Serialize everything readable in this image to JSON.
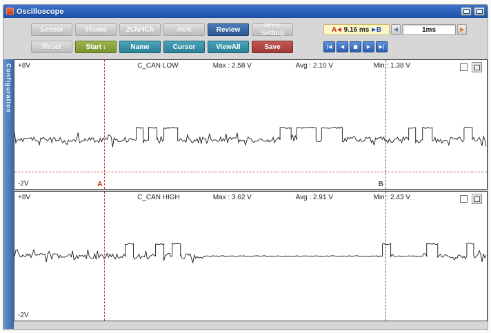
{
  "titlebar": {
    "title": "Oscilloscope"
  },
  "toolbar": {
    "row1": {
      "sensor": "Sensor",
      "theme": "Theme",
      "ch_mode": "2Ch/4Ch",
      "aux": "AUX",
      "review": "Review",
      "user_setting": "User Setting"
    },
    "row2": {
      "reset": "Reset",
      "start": "Start",
      "start_spinner": "↕",
      "name": "Name",
      "cursor": "Cursor",
      "viewall": "ViewAll",
      "save": "Save"
    },
    "time": {
      "a_label": "A",
      "left_mark": "◀",
      "value": "9.16 ms",
      "right_mark": "▶",
      "b_label": "B",
      "dec_glyph": "◀",
      "timebase": "1ms",
      "inc_glyph": "▶"
    },
    "playback": {
      "skip_back": "|◀",
      "back": "◀",
      "stop": "■",
      "play": "▶",
      "skip_forward": "▶|"
    }
  },
  "sidebar": {
    "label": "Configuration"
  },
  "channels": [
    {
      "name": "C_CAN LOW",
      "top_voltage": "+8V",
      "bottom_voltage": "-2V",
      "max": "Max : 2.58 V",
      "avg": "Avg : 2.10 V",
      "min": "Min : 1.38 V",
      "cursor_a_label": "A",
      "cursor_b_label": "B",
      "cursor_a_x": 0.19,
      "cursor_b_x": 0.785,
      "ref_line_y": 0.865,
      "wave": {
        "seed": 7,
        "baseline": 0.62,
        "high_level": 0.525,
        "noise": 4.5,
        "spike_chance": 0.12,
        "high": [
          [
            0.256,
            0.27
          ],
          [
            0.284,
            0.3
          ],
          [
            0.314,
            0.344
          ],
          [
            0.562,
            0.584
          ],
          [
            0.597,
            0.636
          ],
          [
            0.65,
            0.692
          ],
          [
            0.832,
            0.847
          ],
          [
            0.861,
            0.884
          ],
          [
            0.95,
            0.968
          ]
        ],
        "quiet": []
      }
    },
    {
      "name": "C_CAN HIGH",
      "top_voltage": "+8V",
      "bottom_voltage": "-2V",
      "max": "Max : 3.62 V",
      "avg": "Avg : 2.91 V",
      "min": "Min : 2.43 V",
      "cursor_a_label": "",
      "cursor_b_label": "",
      "cursor_a_x": 0.19,
      "cursor_b_x": 0.785,
      "ref_line_y": null,
      "wave": {
        "seed": 13,
        "baseline": 0.5,
        "high_level": 0.405,
        "noise": 4.2,
        "spike_chance": 0.12,
        "high": [
          [
            0.232,
            0.25
          ],
          [
            0.298,
            0.316
          ],
          [
            0.332,
            0.35
          ],
          [
            0.776,
            0.794
          ],
          [
            0.87,
            0.894
          ],
          [
            0.955,
            0.972
          ]
        ],
        "quiet": [
          [
            0.4,
            0.77
          ],
          [
            0.8,
            0.866
          ]
        ]
      }
    }
  ]
}
